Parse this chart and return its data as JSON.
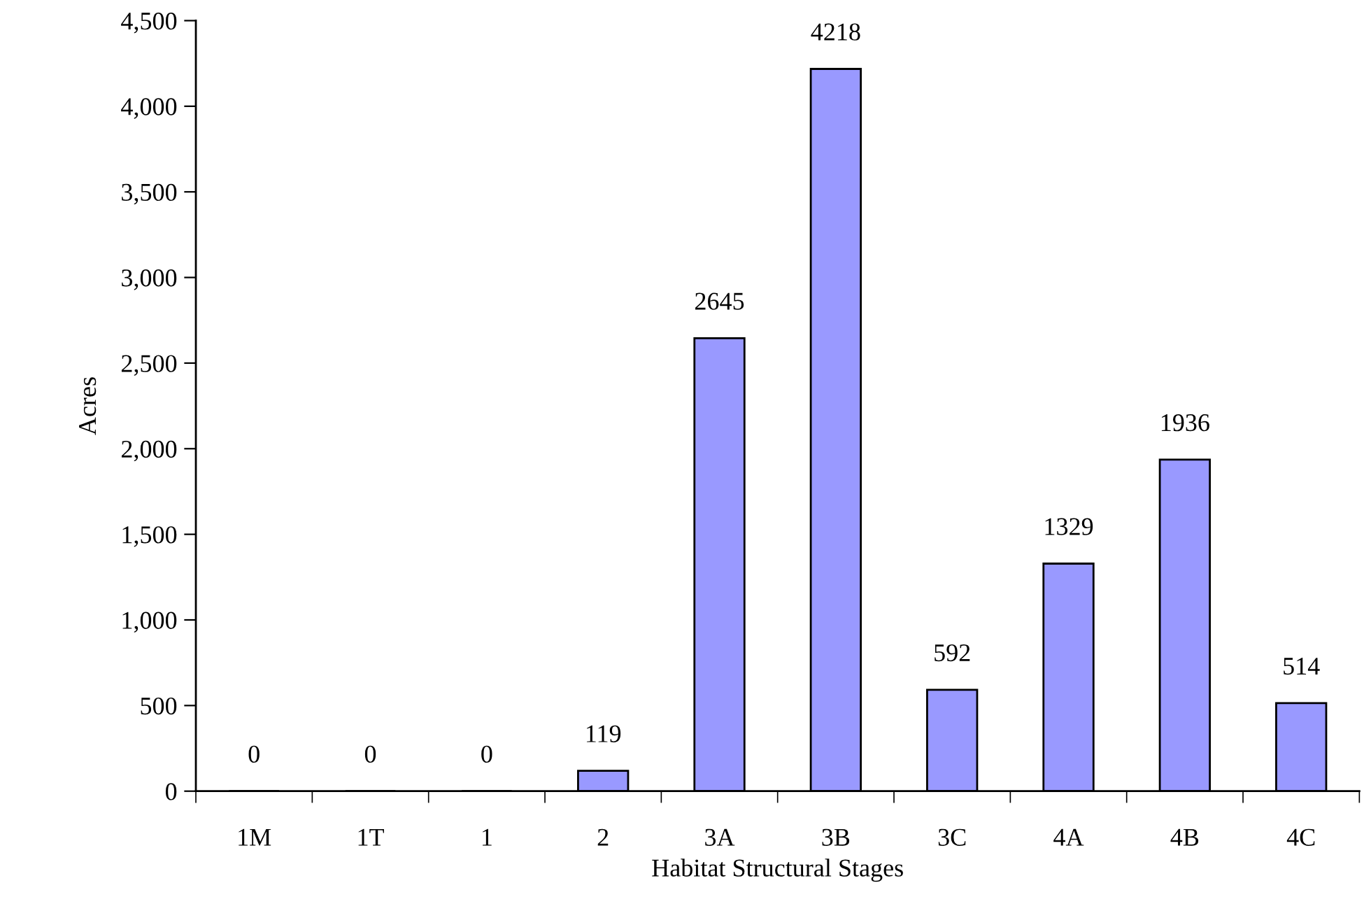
{
  "chart_data": {
    "type": "bar",
    "xlabel": "Habitat Structural Stages",
    "ylabel": "Acres",
    "categories": [
      "1M",
      "1T",
      "1",
      "2",
      "3A",
      "3B",
      "3C",
      "4A",
      "4B",
      "4C"
    ],
    "values": [
      0,
      0,
      0,
      119,
      2645,
      4218,
      592,
      1329,
      1936,
      514
    ],
    "color": "#9999ff",
    "ylim": [
      0,
      4500
    ],
    "yticks": [
      0,
      500,
      {
        "value": 1000,
        "label": "1,000"
      },
      {
        "value": 1500,
        "label": "1,500"
      },
      {
        "value": 2000,
        "label": "2,000"
      },
      {
        "value": 2500,
        "label": "2,500"
      },
      {
        "value": 3000,
        "label": "3,000"
      },
      {
        "value": 3500,
        "label": "3,500"
      },
      {
        "value": 4000,
        "label": "4,000"
      },
      {
        "value": 4500,
        "label": "4,500"
      }
    ],
    "data_labels": true,
    "grid": false,
    "legend": false
  }
}
